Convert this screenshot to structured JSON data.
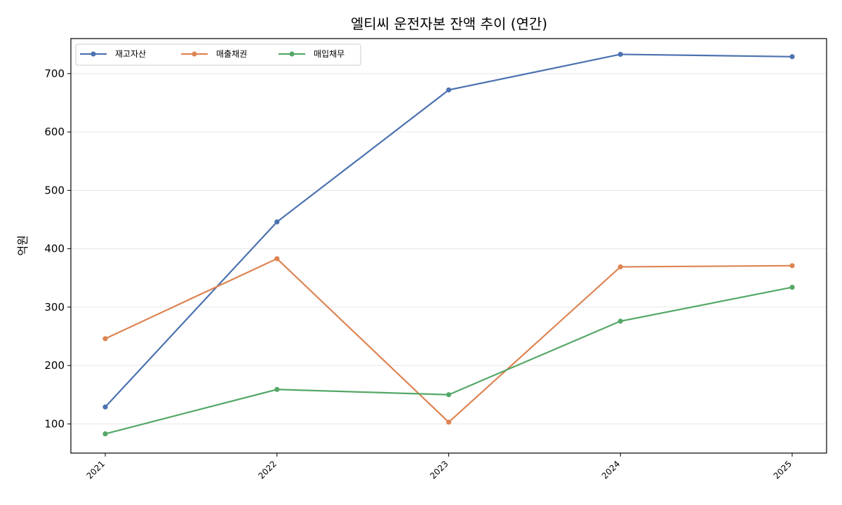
{
  "chart_data": {
    "type": "line",
    "title": "엘티씨 운전자본 잔액 추이 (연간)",
    "xlabel": "",
    "ylabel": "억원",
    "categories": [
      "2021",
      "2022",
      "2023",
      "2024",
      "2025"
    ],
    "ylim": [
      50,
      760
    ],
    "yticks": [
      100,
      200,
      300,
      400,
      500,
      600,
      700
    ],
    "grid": "horizontal",
    "legend_position": "top-left",
    "series": [
      {
        "name": "재고자산",
        "color": "#4c72b0",
        "values": [
          129,
          446,
          672,
          733,
          729
        ]
      },
      {
        "name": "매출채권",
        "color": "#dd8452",
        "values": [
          246,
          383,
          103,
          369,
          371
        ]
      },
      {
        "name": "매입채무",
        "color": "#55a868",
        "values": [
          83,
          159,
          150,
          276,
          334
        ]
      }
    ]
  }
}
